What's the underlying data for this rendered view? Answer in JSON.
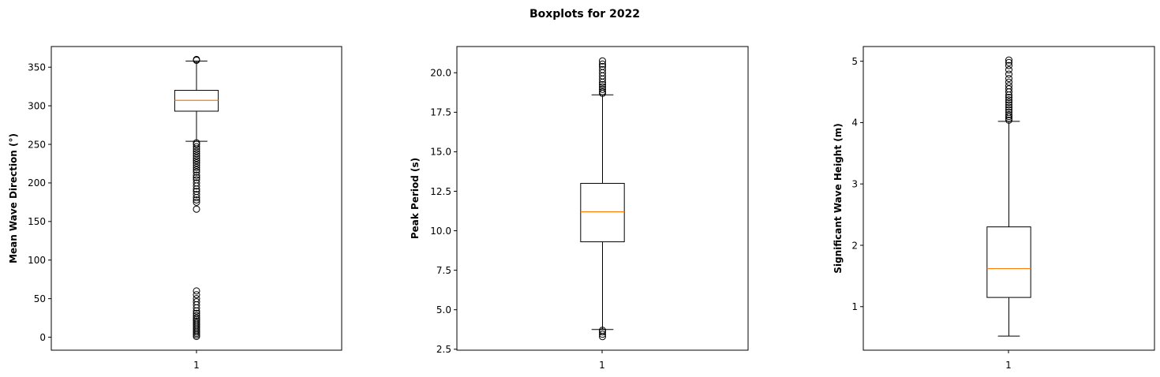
{
  "figure": {
    "title": "Boxplots for 2022"
  },
  "chart_data": [
    {
      "type": "boxplot",
      "title": "",
      "xlabel": "",
      "ylabel": "Mean Wave Direction (°)",
      "categories": [
        "1"
      ],
      "ylim": [
        -16.8,
        376.8
      ],
      "yticks": [
        0,
        50,
        100,
        150,
        200,
        250,
        300,
        350
      ],
      "ytick_labels": [
        "0",
        "50",
        "100",
        "150",
        "200",
        "250",
        "300",
        "350"
      ],
      "box": {
        "whisker_low": 254,
        "q1": 293,
        "median": 307,
        "q3": 320,
        "whisker_high": 358
      },
      "outliers": [
        1,
        3,
        5,
        7,
        9,
        11,
        13,
        15,
        17,
        19,
        21,
        23,
        25,
        28,
        31,
        34,
        38,
        42,
        46,
        50,
        55,
        60,
        166,
        175,
        178,
        181,
        185,
        189,
        192,
        196,
        200,
        204,
        207,
        210,
        214,
        217,
        220,
        223,
        226,
        229,
        232,
        235,
        238,
        241,
        244,
        247,
        250,
        252,
        359,
        360
      ],
      "colors": {
        "box": "#000000",
        "median": "#ff7f0e"
      },
      "grid": false
    },
    {
      "type": "boxplot",
      "title": "",
      "xlabel": "",
      "ylabel": "Peak Period (s)",
      "categories": [
        "1"
      ],
      "ylim": [
        2.44,
        21.66
      ],
      "yticks": [
        2.5,
        5.0,
        7.5,
        10.0,
        12.5,
        15.0,
        17.5,
        20.0
      ],
      "ytick_labels": [
        "2.5",
        "5.0",
        "7.5",
        "10.0",
        "12.5",
        "15.0",
        "17.5",
        "20.0"
      ],
      "box": {
        "whisker_low": 3.75,
        "q1": 9.3,
        "median": 11.2,
        "q3": 13.0,
        "whisker_high": 18.6
      },
      "outliers": [
        3.3,
        3.45,
        3.6,
        3.7,
        18.7,
        18.8,
        18.95,
        19.1,
        19.25,
        19.4,
        19.6,
        19.8,
        20.0,
        20.2,
        20.4,
        20.55,
        20.75
      ],
      "colors": {
        "box": "#000000",
        "median": "#ff7f0e"
      },
      "grid": false
    },
    {
      "type": "boxplot",
      "title": "",
      "xlabel": "",
      "ylabel": "Significant Wave Height (m)",
      "categories": [
        "1"
      ],
      "ylim": [
        0.29,
        5.24
      ],
      "yticks": [
        1,
        2,
        3,
        4,
        5
      ],
      "ytick_labels": [
        "1",
        "2",
        "3",
        "4",
        "5"
      ],
      "box": {
        "whisker_low": 0.52,
        "q1": 1.15,
        "median": 1.62,
        "q3": 2.3,
        "whisker_high": 4.02
      },
      "outliers": [
        4.04,
        4.07,
        4.1,
        4.13,
        4.17,
        4.21,
        4.25,
        4.29,
        4.33,
        4.37,
        4.41,
        4.45,
        4.5,
        4.55,
        4.6,
        4.66,
        4.72,
        4.79,
        4.86,
        4.93,
        4.98,
        5.02
      ],
      "colors": {
        "box": "#000000",
        "median": "#ff7f0e"
      },
      "grid": false
    }
  ]
}
